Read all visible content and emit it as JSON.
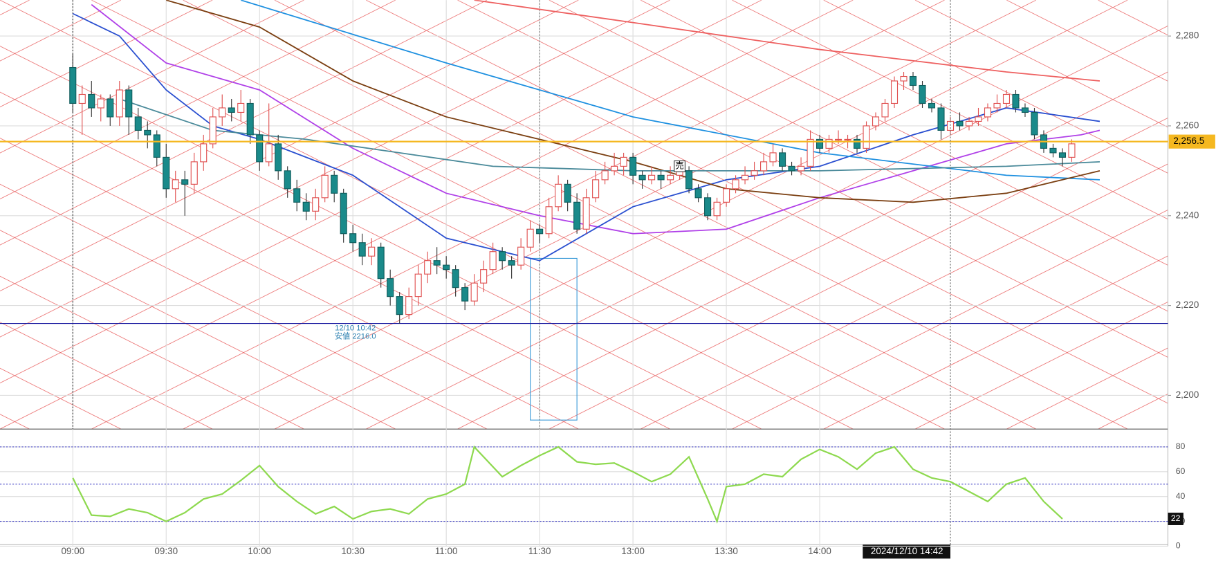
{
  "chart_data": {
    "type": "candlestick",
    "xlim": [
      -7.8,
      117.3
    ],
    "ylim": [
      2192.5,
      2288
    ],
    "yticks": [
      {
        "value": 2200,
        "label": "2,200"
      },
      {
        "value": 2220,
        "label": "2,220"
      },
      {
        "value": 2240,
        "label": "2,240"
      },
      {
        "value": 2260,
        "label": "2,260"
      },
      {
        "value": 2280,
        "label": "2,280"
      }
    ],
    "xticks": [
      {
        "value": 0,
        "label": "09:00"
      },
      {
        "value": 10,
        "label": "09:30"
      },
      {
        "value": 20,
        "label": "10:00"
      },
      {
        "value": 30,
        "label": "10:30"
      },
      {
        "value": 40,
        "label": "11:00"
      },
      {
        "value": 50,
        "label": "11:30"
      },
      {
        "value": 60,
        "label": "13:00"
      },
      {
        "value": 70,
        "label": "13:30"
      },
      {
        "value": 80,
        "label": "14:00"
      }
    ],
    "grid": true,
    "up_color": "#e05050",
    "down_color": "#1a8a8a",
    "ohlc": [
      [
        2273,
        2276,
        2263,
        2265
      ],
      [
        2265,
        2269,
        2258,
        2267
      ],
      [
        2267,
        2270,
        2262,
        2264
      ],
      [
        2264,
        2267,
        2261,
        2266
      ],
      [
        2266,
        2267,
        2260,
        2262
      ],
      [
        2262,
        2270,
        2260,
        2268
      ],
      [
        2268,
        2269,
        2258,
        2262
      ],
      [
        2262,
        2264,
        2257,
        2259
      ],
      [
        2259,
        2261,
        2255,
        2258
      ],
      [
        2258,
        2259,
        2251,
        2253
      ],
      [
        2253,
        2256,
        2244,
        2246
      ],
      [
        2246,
        2250,
        2243,
        2248
      ],
      [
        2248,
        2250,
        2240,
        2247
      ],
      [
        2247,
        2254,
        2245,
        2252
      ],
      [
        2252,
        2258,
        2250,
        2256
      ],
      [
        2256,
        2264,
        2255,
        2262
      ],
      [
        2262,
        2267,
        2260,
        2264
      ],
      [
        2264,
        2266,
        2261,
        2263
      ],
      [
        2263,
        2268,
        2261,
        2265
      ],
      [
        2265,
        2266,
        2256,
        2258
      ],
      [
        2258,
        2259,
        2250,
        2252
      ],
      [
        2252,
        2265,
        2251,
        2256
      ],
      [
        2256,
        2258,
        2248,
        2250
      ],
      [
        2250,
        2251,
        2244,
        2246
      ],
      [
        2246,
        2248,
        2241,
        2243
      ],
      [
        2243,
        2245,
        2239,
        2241
      ],
      [
        2241,
        2246,
        2239,
        2244
      ],
      [
        2244,
        2251,
        2243,
        2249
      ],
      [
        2249,
        2250,
        2243,
        2245
      ],
      [
        2245,
        2246,
        2234,
        2236
      ],
      [
        2236,
        2238,
        2232,
        2234
      ],
      [
        2234,
        2236,
        2229,
        2231
      ],
      [
        2231,
        2235,
        2229,
        2233
      ],
      [
        2233,
        2234,
        2224,
        2226
      ],
      [
        2226,
        2228,
        2220,
        2222
      ],
      [
        2222,
        2223,
        2216,
        2218
      ],
      [
        2218,
        2224,
        2217,
        2222
      ],
      [
        2222,
        2229,
        2220,
        2227
      ],
      [
        2227,
        2232,
        2225,
        2230
      ],
      [
        2230,
        2233,
        2227,
        2229
      ],
      [
        2229,
        2231,
        2226,
        2228
      ],
      [
        2228,
        2229,
        2222,
        2224
      ],
      [
        2224,
        2225,
        2219,
        2221
      ],
      [
        2221,
        2227,
        2220,
        2225
      ],
      [
        2225,
        2230,
        2223,
        2228
      ],
      [
        2228,
        2234,
        2227,
        2232
      ],
      [
        2232,
        2233,
        2228,
        2230
      ],
      [
        2230,
        2231,
        2226,
        2229
      ],
      [
        2229,
        2235,
        2228,
        2233
      ],
      [
        2233,
        2239,
        2232,
        2237
      ],
      [
        2237,
        2238,
        2234,
        2236
      ],
      [
        2236,
        2244,
        2235,
        2242
      ],
      [
        2242,
        2249,
        2241,
        2247
      ],
      [
        2247,
        2248,
        2241,
        2243
      ],
      [
        2243,
        2245,
        2236,
        2237
      ],
      [
        2237,
        2246,
        2236,
        2244
      ],
      [
        2244,
        2250,
        2243,
        2248
      ],
      [
        2248,
        2252,
        2247,
        2250
      ],
      [
        2250,
        2254,
        2249,
        2251
      ],
      [
        2251,
        2254,
        2249,
        2253
      ],
      [
        2253,
        2254,
        2247,
        2249
      ],
      [
        2249,
        2250,
        2246,
        2248
      ],
      [
        2248,
        2251,
        2247,
        2249
      ],
      [
        2249,
        2250,
        2246,
        2248
      ],
      [
        2248,
        2251,
        2247,
        2249
      ],
      [
        2249,
        2252,
        2248,
        2250
      ],
      [
        2250,
        2251,
        2245,
        2246
      ],
      [
        2246,
        2247,
        2243,
        2244
      ],
      [
        2244,
        2245,
        2239,
        2240
      ],
      [
        2240,
        2244,
        2239,
        2243
      ],
      [
        2243,
        2247,
        2242,
        2246
      ],
      [
        2246,
        2249,
        2245,
        2248
      ],
      [
        2248,
        2251,
        2247,
        2249
      ],
      [
        2249,
        2252,
        2248,
        2250
      ],
      [
        2250,
        2254,
        2249,
        2252
      ],
      [
        2252,
        2256,
        2251,
        2254
      ],
      [
        2254,
        2255,
        2250,
        2251
      ],
      [
        2251,
        2252,
        2249,
        2250
      ],
      [
        2250,
        2253,
        2249,
        2251
      ],
      [
        2251,
        2259,
        2250,
        2257
      ],
      [
        2257,
        2258,
        2254,
        2255
      ],
      [
        2255,
        2258,
        2254,
        2257
      ],
      [
        2257,
        2259,
        2256,
        2257
      ],
      [
        2257,
        2258,
        2255,
        2257
      ],
      [
        2257,
        2258,
        2254,
        2255
      ],
      [
        2255,
        2261,
        2254,
        2260
      ],
      [
        2260,
        2263,
        2259,
        2262
      ],
      [
        2262,
        2266,
        2261,
        2265
      ],
      [
        2265,
        2271,
        2264,
        2270
      ],
      [
        2270,
        2272,
        2268,
        2271
      ],
      [
        2271,
        2272,
        2268,
        2269
      ],
      [
        2269,
        2270,
        2264,
        2265
      ],
      [
        2265,
        2266,
        2263,
        2264
      ],
      [
        2264,
        2265,
        2257,
        2259
      ],
      [
        2259,
        2262,
        2258,
        2261
      ],
      [
        2261,
        2263,
        2259,
        2260
      ],
      [
        2260,
        2262,
        2259,
        2261
      ],
      [
        2261,
        2264,
        2260,
        2262
      ],
      [
        2262,
        2265,
        2261,
        2264
      ],
      [
        2264,
        2267,
        2263,
        2265
      ],
      [
        2265,
        2268,
        2264,
        2267
      ],
      [
        2267,
        2268,
        2263,
        2264
      ],
      [
        2264,
        2265,
        2262,
        2263
      ],
      [
        2263,
        2264,
        2257,
        2258
      ],
      [
        2258,
        2259,
        2254,
        2255
      ],
      [
        2255,
        2256,
        2253,
        2254
      ],
      [
        2254,
        2255,
        2251,
        2253
      ],
      [
        2253,
        2257,
        2252,
        2256
      ]
    ],
    "ma": [
      {
        "color": "#b040e8",
        "x": [
          2,
          10,
          20,
          30,
          40,
          50,
          60,
          70,
          80,
          90,
          100,
          108,
          110
        ],
        "values": [
          2287,
          2274,
          2268,
          2255,
          2245,
          2240,
          2236,
          2237,
          2244,
          2250,
          2256,
          2258,
          2259
        ]
      },
      {
        "color": "#2a4fd0",
        "x": [
          0,
          5,
          10,
          15,
          20,
          30,
          40,
          50,
          60,
          70,
          80,
          90,
          100,
          110
        ],
        "values": [
          2285,
          2280,
          2268,
          2260,
          2257,
          2249,
          2235,
          2230,
          2242,
          2248,
          2251,
          2258,
          2264,
          2261
        ]
      },
      {
        "color": "#1e90e0",
        "x": [
          18,
          40,
          60,
          80,
          100,
          110
        ],
        "values": [
          2288,
          2274,
          2262,
          2254,
          2249,
          2248
        ]
      },
      {
        "color": "#7a3e10",
        "x": [
          10,
          20,
          30,
          40,
          50,
          60,
          70,
          80,
          90,
          100,
          110
        ],
        "values": [
          2288,
          2282,
          2270,
          2262,
          2257,
          2252,
          2246,
          2244,
          2243,
          2245,
          2250
        ]
      },
      {
        "color": "#ee6060",
        "x": [
          43,
          60,
          80,
          100,
          110
        ],
        "values": [
          2288,
          2283,
          2277,
          2272,
          2270
        ]
      },
      {
        "color": "#4a8a9a",
        "x": [
          5,
          15,
          25,
          35,
          45,
          60,
          80,
          100,
          110
        ],
        "values": [
          2266,
          2259,
          2257,
          2254,
          2251,
          2250,
          2250,
          2251,
          2252
        ]
      }
    ],
    "last_price": {
      "value": 2256.5,
      "label": "2,256.5",
      "color": "#f5b820"
    },
    "low_note": {
      "lines": [
        "12/10 10:42",
        "安値 2216.0"
      ],
      "x": 34,
      "value": 2216.0,
      "color": "#1a1aa0"
    },
    "sell_marker": {
      "label": "売",
      "x": 65,
      "value": 2251
    },
    "box": {
      "x": [
        49,
        54
      ],
      "y": [
        2230.5,
        2194.5
      ],
      "color": "#3a9ad8"
    },
    "session_lines": [
      0,
      50
    ],
    "crosshair": {
      "value": 94,
      "label": "2024/12/10 14:42"
    },
    "rsi": {
      "color": "#8ed94f",
      "ylim": [
        0,
        94.4
      ],
      "yticks": [
        0,
        20,
        40,
        60,
        80
      ],
      "levels": [
        80,
        50,
        20
      ],
      "x": [
        0,
        2,
        4,
        6,
        8,
        10,
        12,
        14,
        16,
        18,
        20,
        22,
        24,
        26,
        28,
        30,
        32,
        34,
        36,
        38,
        40,
        42,
        43,
        46,
        48,
        50,
        52,
        54,
        56,
        58,
        60,
        62,
        64,
        66,
        68,
        69,
        70,
        72,
        74,
        76,
        78,
        80,
        82,
        84,
        86,
        88,
        90,
        92,
        94,
        96,
        98,
        100,
        102,
        104,
        106
      ],
      "values": [
        55,
        25,
        24,
        30,
        27,
        20,
        27,
        38,
        42,
        53,
        65,
        48,
        36,
        26,
        32,
        22,
        28,
        30,
        26,
        38,
        42,
        50,
        80,
        56,
        65,
        73,
        80,
        68,
        66,
        67,
        60,
        52,
        58,
        72,
        38,
        20,
        48,
        50,
        58,
        56,
        70,
        78,
        72,
        62,
        75,
        80,
        62,
        55,
        52,
        44,
        36,
        50,
        55,
        36,
        22
      ]
    }
  }
}
